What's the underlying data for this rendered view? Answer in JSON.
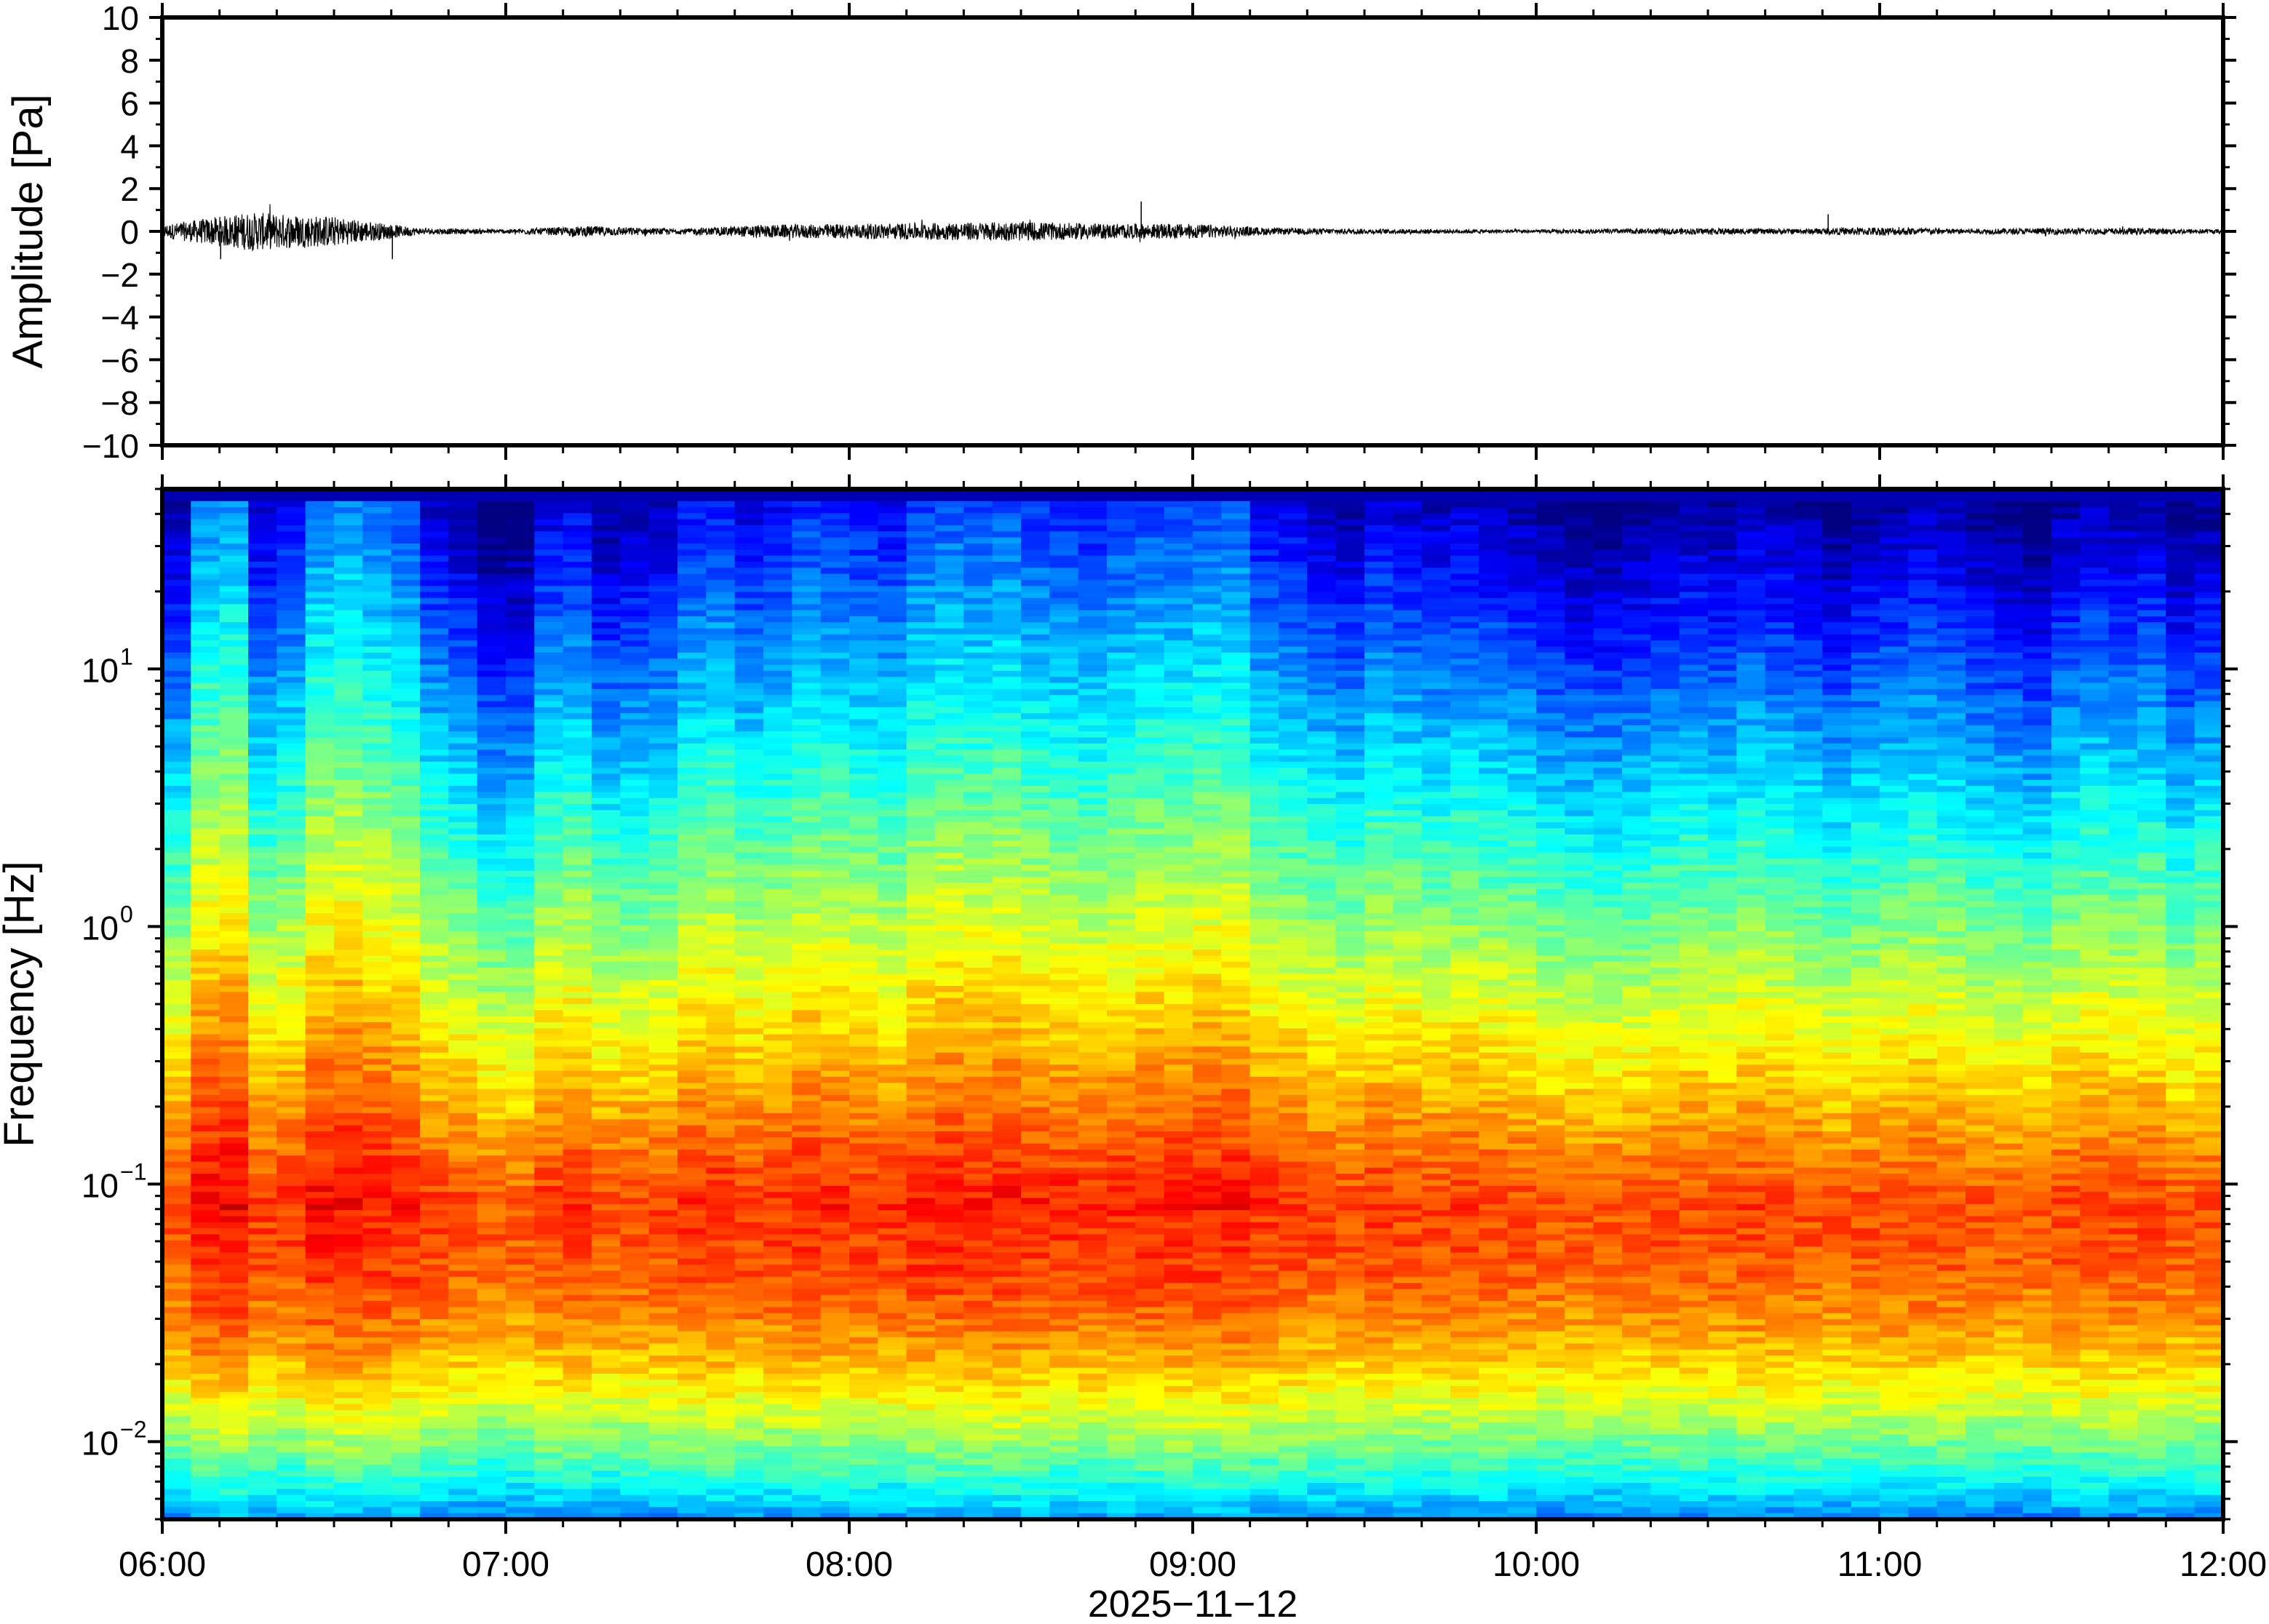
{
  "chart_data": [
    {
      "type": "line",
      "panel": "waveform",
      "ylabel": "Amplitude [Pa]",
      "ylim": [
        -10,
        10
      ],
      "y_ticks": [
        10,
        8,
        6,
        4,
        2,
        0,
        -2,
        -4,
        -6,
        -8,
        -10
      ],
      "y_tick_labels": [
        "10",
        "8",
        "6",
        "4",
        "2",
        "0",
        "−2",
        "−4",
        "−6",
        "−8",
        "−10"
      ],
      "x_range": [
        "06:00",
        "12:00"
      ],
      "series": [
        {
          "values_description_hours": [
            6.0,
            6.25,
            6.5,
            6.75,
            7.0,
            7.25,
            7.5,
            7.75,
            8.0,
            8.25,
            8.5,
            8.75,
            9.0,
            9.25,
            9.5,
            9.75,
            10.0,
            10.25,
            10.5,
            10.75,
            11.0,
            11.25,
            11.5,
            11.75,
            12.0
          ],
          "envelope_pa": [
            0.3,
            0.9,
            0.7,
            0.15,
            0.1,
            0.25,
            0.12,
            0.3,
            0.35,
            0.4,
            0.45,
            0.35,
            0.35,
            0.15,
            0.12,
            0.1,
            0.08,
            0.12,
            0.15,
            0.12,
            0.2,
            0.12,
            0.15,
            0.15,
            0.1
          ],
          "peaks": [
            {
              "t": 6.17,
              "a": -1.3
            },
            {
              "t": 6.67,
              "a": -1.3
            },
            {
              "t": 8.85,
              "a": 1.4
            },
            {
              "t": 10.85,
              "a": 0.8
            }
          ]
        }
      ]
    },
    {
      "type": "heatmap",
      "panel": "spectrogram",
      "ylabel": "Frequency [Hz]",
      "y_scale": "log",
      "ylim": [
        0.005,
        50
      ],
      "y_ticks": [
        {
          "base": "10",
          "exp": "1"
        },
        {
          "base": "10",
          "exp": "0"
        },
        {
          "base": "10",
          "exp": "−1"
        },
        {
          "base": "10",
          "exp": "−2"
        }
      ],
      "x_ticks": [
        "06:00",
        "07:00",
        "08:00",
        "09:00",
        "10:00",
        "11:00",
        "12:00"
      ],
      "xlabel": "2025−11−12",
      "colormap": "jet",
      "time_bins": 72,
      "column_power_relative": [
        0.3,
        0.9,
        0.95,
        0.4,
        0.5,
        0.85,
        0.9,
        0.8,
        0.7,
        0.4,
        0.3,
        0.1,
        0.1,
        0.45,
        0.5,
        0.25,
        0.3,
        0.35,
        0.55,
        0.6,
        0.45,
        0.5,
        0.65,
        0.6,
        0.55,
        0.5,
        0.7,
        0.75,
        0.7,
        0.75,
        0.65,
        0.6,
        0.55,
        0.65,
        0.7,
        0.7,
        0.75,
        0.75,
        0.5,
        0.45,
        0.35,
        0.3,
        0.45,
        0.4,
        0.35,
        0.4,
        0.35,
        0.3,
        0.2,
        0.15,
        0.15,
        0.2,
        0.25,
        0.3,
        0.25,
        0.35,
        0.3,
        0.25,
        0.15,
        0.25,
        0.3,
        0.35,
        0.3,
        0.2,
        0.15,
        0.1,
        0.3,
        0.35,
        0.3,
        0.35,
        0.15,
        0.25
      ],
      "microseism_peak_hz": 0.08
    }
  ]
}
